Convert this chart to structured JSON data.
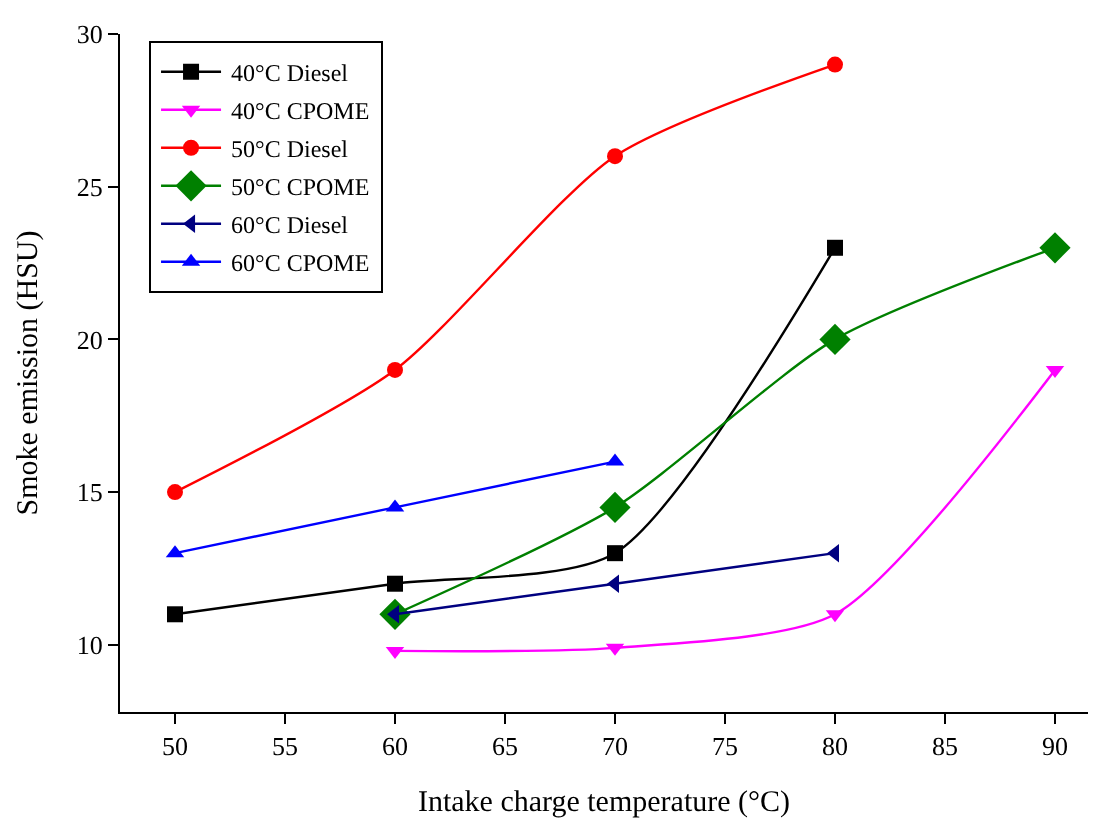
{
  "chart_data": {
    "type": "line",
    "xlabel": "Intake charge temperature (°C)",
    "ylabel": "Smoke emission (HSU)",
    "xlim": [
      47.5,
      91.5
    ],
    "xticks": [
      50,
      55,
      60,
      65,
      70,
      75,
      80,
      85,
      90
    ],
    "ylim": [
      7.8,
      30
    ],
    "yticks": [
      10,
      15,
      20,
      25,
      30
    ],
    "legend": "top left",
    "line_style": "solid",
    "series": [
      {
        "name": "40°C Diesel",
        "color": "#000000",
        "marker": "square",
        "x": [
          50,
          60,
          70,
          80
        ],
        "values": [
          11,
          12,
          13,
          23
        ]
      },
      {
        "name": "40°C CPOME",
        "color": "#ff00ff",
        "marker": "triangle-down",
        "x": [
          60,
          70,
          80,
          90
        ],
        "values": [
          9.8,
          9.9,
          11,
          19
        ]
      },
      {
        "name": "50°C Diesel",
        "color": "#ff0000",
        "marker": "circle",
        "x": [
          50,
          60,
          70,
          80
        ],
        "values": [
          15,
          19,
          26,
          29
        ]
      },
      {
        "name": "50°C CPOME",
        "color": "#008000",
        "marker": "diamond",
        "x": [
          60,
          70,
          80,
          90
        ],
        "values": [
          11,
          14.5,
          20,
          23
        ]
      },
      {
        "name": "60°C Diesel",
        "color": "#000080",
        "marker": "triangle-left",
        "x": [
          60,
          70,
          80
        ],
        "values": [
          11,
          12,
          13
        ]
      },
      {
        "name": "60°C CPOME",
        "color": "#0000ff",
        "marker": "triangle-up",
        "x": [
          50,
          60,
          70
        ],
        "values": [
          13,
          14.5,
          16
        ]
      }
    ]
  }
}
